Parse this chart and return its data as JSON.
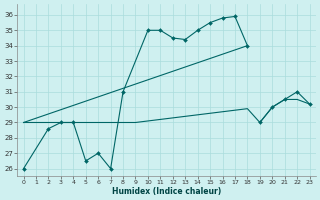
{
  "xlabel": "Humidex (Indice chaleur)",
  "bg_color": "#cff0f0",
  "grid_color": "#aadddd",
  "line_color": "#006666",
  "xlim": [
    -0.5,
    23.5
  ],
  "ylim": [
    25.5,
    36.7
  ],
  "yticks": [
    26,
    27,
    28,
    29,
    30,
    31,
    32,
    33,
    34,
    35,
    36
  ],
  "xticks": [
    0,
    1,
    2,
    3,
    4,
    5,
    6,
    7,
    8,
    9,
    10,
    11,
    12,
    13,
    14,
    15,
    16,
    17,
    18,
    19,
    20,
    21,
    22,
    23
  ],
  "s1x": [
    0,
    2,
    3,
    4,
    5,
    6,
    7,
    8,
    10,
    11,
    12,
    13,
    14,
    15,
    16,
    17,
    18
  ],
  "s1y": [
    26.0,
    28.6,
    29.0,
    29.0,
    26.5,
    27.0,
    26.0,
    31.0,
    35.0,
    35.0,
    34.5,
    34.4,
    35.0,
    35.5,
    35.8,
    35.9,
    34.0
  ],
  "s2x": [
    0,
    18
  ],
  "s2y": [
    29.0,
    34.0
  ],
  "s3x": [
    0,
    1,
    2,
    3,
    4,
    5,
    6,
    7,
    8,
    9,
    10,
    11,
    12,
    13,
    14,
    15,
    16,
    17,
    18,
    19,
    20,
    21,
    22,
    23
  ],
  "s3y": [
    29.0,
    29.0,
    29.0,
    29.0,
    29.0,
    29.0,
    29.0,
    29.0,
    29.0,
    29.0,
    29.1,
    29.2,
    29.3,
    29.4,
    29.5,
    29.6,
    29.7,
    29.8,
    29.9,
    29.0,
    30.0,
    30.5,
    30.5,
    30.2
  ],
  "s4x": [
    19,
    20,
    21,
    22,
    23
  ],
  "s4y": [
    29.0,
    30.0,
    30.5,
    31.0,
    30.2
  ]
}
